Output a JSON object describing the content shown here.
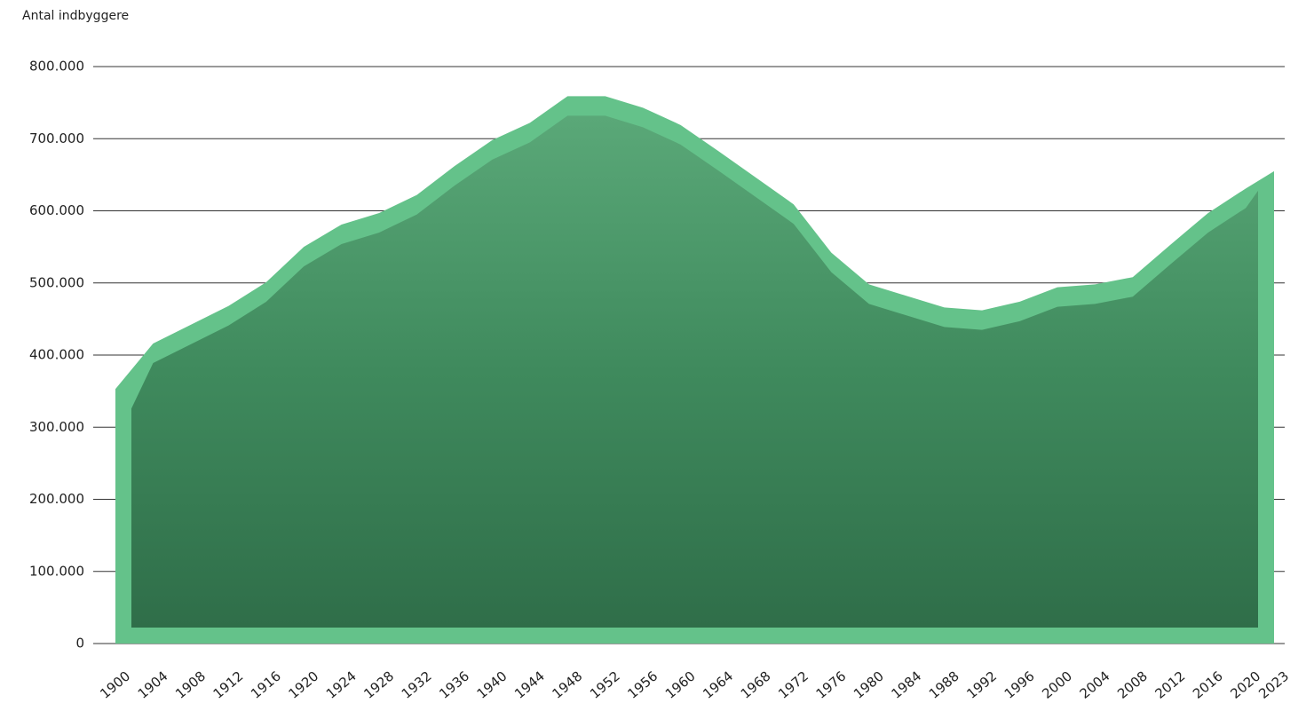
{
  "chart_data": {
    "type": "area",
    "y_axis_label": "Antal indbyggere",
    "x": [
      1900,
      1904,
      1908,
      1912,
      1916,
      1920,
      1924,
      1928,
      1932,
      1936,
      1940,
      1944,
      1948,
      1952,
      1956,
      1960,
      1964,
      1968,
      1972,
      1976,
      1980,
      1984,
      1988,
      1992,
      1996,
      2000,
      2004,
      2008,
      2012,
      2016,
      2020,
      2023
    ],
    "values": [
      353000,
      416000,
      442000,
      468000,
      501000,
      550000,
      581000,
      597000,
      622000,
      662000,
      698000,
      722000,
      759000,
      759000,
      743000,
      719000,
      683000,
      646000,
      609000,
      542000,
      498000,
      482000,
      466000,
      462000,
      474000,
      494000,
      498000,
      508000,
      553000,
      597000,
      631000,
      655000
    ],
    "color": "#64c28a",
    "xlim": [
      1900,
      2023
    ],
    "xticks": [
      1900,
      1904,
      1908,
      1912,
      1916,
      1920,
      1924,
      1928,
      1932,
      1936,
      1940,
      1944,
      1948,
      1952,
      1956,
      1960,
      1964,
      1968,
      1972,
      1976,
      1980,
      1984,
      1988,
      1992,
      1996,
      2000,
      2004,
      2008,
      2012,
      2016,
      2020,
      2023
    ],
    "ylim": [
      0,
      800000
    ],
    "yticks": [
      0,
      {
        "value": 100000,
        "label": "100.000"
      },
      {
        "value": 200000,
        "label": "200.000"
      },
      {
        "value": 300000,
        "label": "300.000"
      },
      {
        "value": 400000,
        "label": "400.000"
      },
      {
        "value": 500000,
        "label": "500.000"
      },
      {
        "value": 600000,
        "label": "600.000"
      },
      {
        "value": 700000,
        "label": "700.000"
      },
      {
        "value": 800000,
        "label": "800.000"
      }
    ],
    "grid": true
  }
}
